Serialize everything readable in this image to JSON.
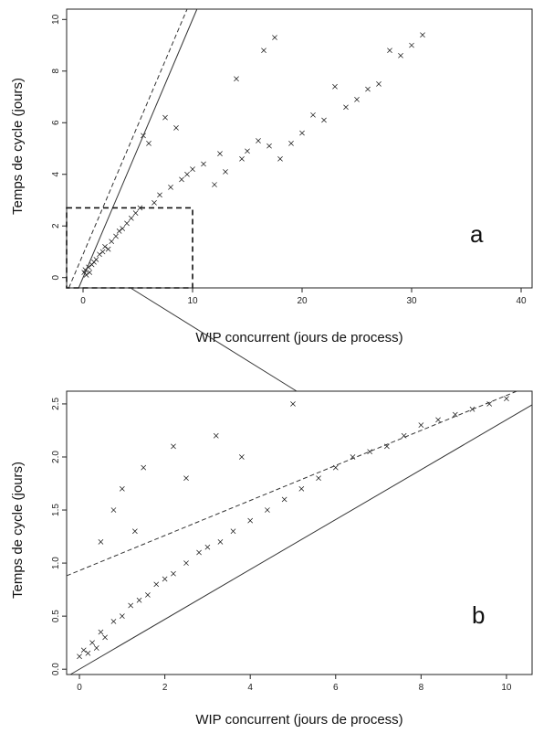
{
  "chart_data": [
    {
      "type": "scatter",
      "panel_label": "a",
      "xlabel": "WIP concurrent (jours de process)",
      "ylabel": "Temps de cycle (jours)",
      "xlim": [
        -1.5,
        41
      ],
      "ylim": [
        -0.4,
        10.4
      ],
      "xticks": [
        0,
        10,
        20,
        30,
        40
      ],
      "yticks": [
        0,
        2,
        4,
        6,
        8,
        10
      ],
      "marker": "x",
      "reference_lines": [
        {
          "style": "solid",
          "intercept": 0,
          "slope": 1,
          "description": "y = x"
        },
        {
          "style": "dashed",
          "intercept": 0.9,
          "slope": 1
        }
      ],
      "zoom_box": {
        "x": [
          -1.5,
          10
        ],
        "y": [
          -0.4,
          2.7
        ]
      },
      "series": [
        {
          "points": [
            [
              0.1,
              0.2
            ],
            [
              0.2,
              0.3
            ],
            [
              0.3,
              0.1
            ],
            [
              0.5,
              0.4
            ],
            [
              0.6,
              0.2
            ],
            [
              0.8,
              0.5
            ],
            [
              1.0,
              0.6
            ],
            [
              1.2,
              0.7
            ],
            [
              1.5,
              0.9
            ],
            [
              1.8,
              1.0
            ],
            [
              2.0,
              1.2
            ],
            [
              2.3,
              1.1
            ],
            [
              2.6,
              1.4
            ],
            [
              3.0,
              1.6
            ],
            [
              3.3,
              1.8
            ],
            [
              3.6,
              1.9
            ],
            [
              4.0,
              2.1
            ],
            [
              4.4,
              2.3
            ],
            [
              4.8,
              2.5
            ],
            [
              5.2,
              2.7
            ],
            [
              5.5,
              5.5
            ],
            [
              6.0,
              5.2
            ],
            [
              6.5,
              2.9
            ],
            [
              7.0,
              3.2
            ],
            [
              7.5,
              6.2
            ],
            [
              8.0,
              3.5
            ],
            [
              8.5,
              5.8
            ],
            [
              9.0,
              3.8
            ],
            [
              9.5,
              4.0
            ],
            [
              10.0,
              4.2
            ],
            [
              11.0,
              4.4
            ],
            [
              12.0,
              3.6
            ],
            [
              12.5,
              4.8
            ],
            [
              13.0,
              4.1
            ],
            [
              14.0,
              7.7
            ],
            [
              14.5,
              4.6
            ],
            [
              15.0,
              4.9
            ],
            [
              16.0,
              5.3
            ],
            [
              16.5,
              8.8
            ],
            [
              17.0,
              5.1
            ],
            [
              17.5,
              9.3
            ],
            [
              18.0,
              4.6
            ],
            [
              19.0,
              5.2
            ],
            [
              20.0,
              5.6
            ],
            [
              21.0,
              6.3
            ],
            [
              22.0,
              6.1
            ],
            [
              23.0,
              7.4
            ],
            [
              24.0,
              6.6
            ],
            [
              25.0,
              6.9
            ],
            [
              26.0,
              7.3
            ],
            [
              27.0,
              7.5
            ],
            [
              28.0,
              8.8
            ],
            [
              29.0,
              8.6
            ],
            [
              30.0,
              9.0
            ],
            [
              31.0,
              9.4
            ]
          ]
        }
      ]
    },
    {
      "type": "scatter",
      "panel_label": "b",
      "xlabel": "WIP concurrent (jours de process)",
      "ylabel": "Temps de cycle (jours)",
      "xlim": [
        -0.3,
        10.6
      ],
      "ylim": [
        -0.05,
        2.62
      ],
      "xticks": [
        0,
        2,
        4,
        6,
        8,
        10
      ],
      "yticks": [
        0.0,
        0.5,
        1.0,
        1.5,
        2.0,
        2.5
      ],
      "marker": "x",
      "reference_lines": [
        {
          "style": "solid",
          "intercept": 0,
          "slope": 0.235
        },
        {
          "style": "dashed",
          "intercept": 0.93,
          "slope": 0.165
        }
      ],
      "series": [
        {
          "points": [
            [
              0.0,
              0.12
            ],
            [
              0.1,
              0.18
            ],
            [
              0.2,
              0.15
            ],
            [
              0.3,
              0.25
            ],
            [
              0.4,
              0.2
            ],
            [
              0.5,
              0.35
            ],
            [
              0.6,
              0.3
            ],
            [
              0.8,
              0.45
            ],
            [
              1.0,
              0.5
            ],
            [
              1.2,
              0.6
            ],
            [
              1.4,
              0.65
            ],
            [
              1.6,
              0.7
            ],
            [
              1.8,
              0.8
            ],
            [
              2.0,
              0.85
            ],
            [
              2.2,
              0.9
            ],
            [
              2.5,
              1.0
            ],
            [
              2.8,
              1.1
            ],
            [
              3.0,
              1.15
            ],
            [
              3.3,
              1.2
            ],
            [
              3.6,
              1.3
            ],
            [
              4.0,
              1.4
            ],
            [
              4.4,
              1.5
            ],
            [
              4.8,
              1.6
            ],
            [
              5.2,
              1.7
            ],
            [
              5.6,
              1.8
            ],
            [
              6.0,
              1.9
            ],
            [
              6.4,
              2.0
            ],
            [
              6.8,
              2.05
            ],
            [
              7.2,
              2.1
            ],
            [
              7.6,
              2.2
            ],
            [
              8.0,
              2.3
            ],
            [
              8.4,
              2.35
            ],
            [
              8.8,
              2.4
            ],
            [
              9.2,
              2.45
            ],
            [
              9.6,
              2.5
            ],
            [
              10.0,
              2.55
            ],
            [
              1.0,
              1.7
            ],
            [
              1.5,
              1.9
            ],
            [
              2.2,
              2.1
            ],
            [
              2.5,
              1.8
            ],
            [
              3.2,
              2.2
            ],
            [
              0.5,
              1.2
            ],
            [
              1.3,
              1.3
            ],
            [
              0.8,
              1.5
            ],
            [
              3.8,
              2.0
            ],
            [
              5.0,
              2.5
            ]
          ]
        }
      ]
    }
  ]
}
